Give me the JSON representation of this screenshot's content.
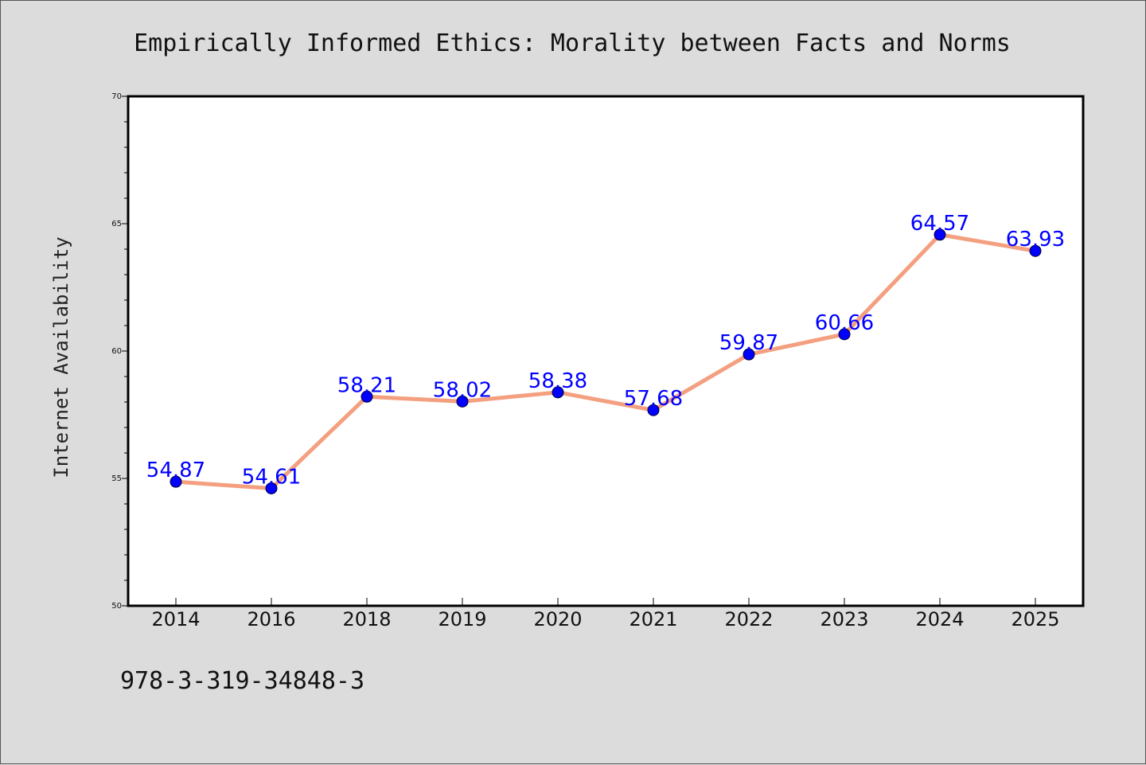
{
  "footer_text": "978-3-319-34848-3",
  "colors": {
    "background": "#dcdcdc",
    "plot_background": "#ffffff",
    "line": "#f4a080",
    "marker": "#0000ff",
    "data_label": "#0000ff"
  },
  "chart_data": {
    "type": "line",
    "title": "Empirically Informed Ethics: Morality between Facts and Norms",
    "xlabel": "",
    "ylabel": "Internet Availability",
    "categories": [
      "2014",
      "2016",
      "2018",
      "2019",
      "2020",
      "2021",
      "2022",
      "2023",
      "2024",
      "2025"
    ],
    "series": [
      {
        "values": [
          54.87,
          54.61,
          58.21,
          58.02,
          58.38,
          57.68,
          59.87,
          60.66,
          64.57,
          63.93
        ],
        "data_labels": [
          "54.87",
          "54.61",
          "58.21",
          "58.02",
          "58.38",
          "57.68",
          "59.87",
          "60.66",
          "64.57",
          "63.93"
        ]
      }
    ],
    "ylim": [
      50,
      70
    ],
    "yticks": [
      "50",
      "55",
      "60",
      "65",
      "70"
    ],
    "grid": false,
    "legend": "none"
  }
}
